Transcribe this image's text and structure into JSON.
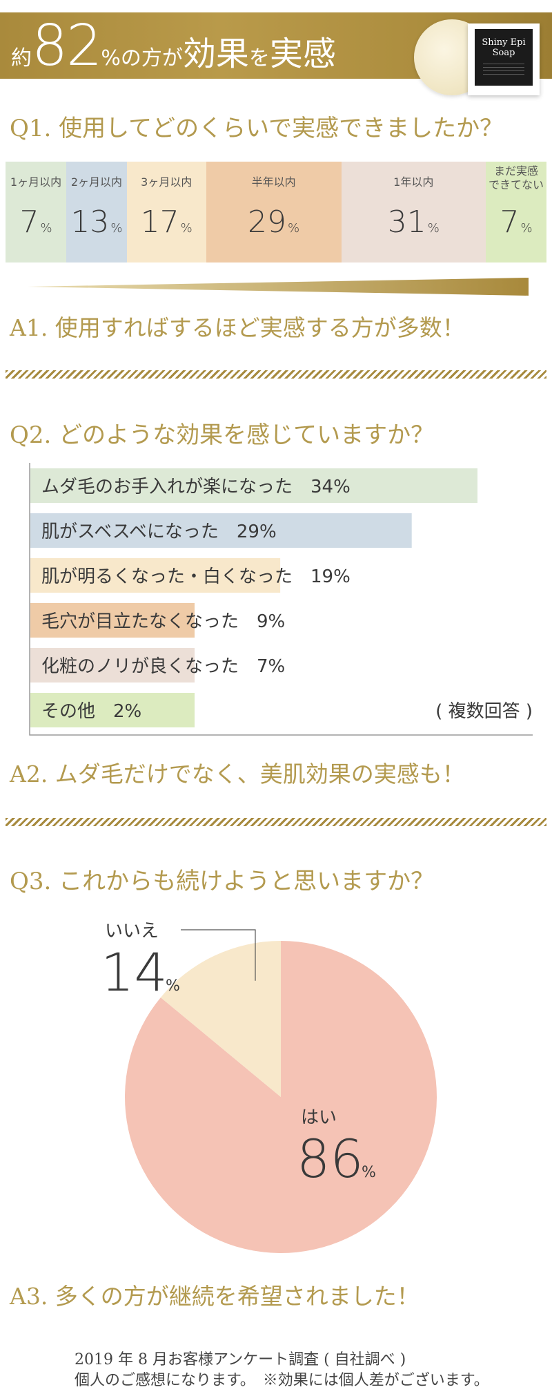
{
  "header": {
    "prefix": "約",
    "number": "82",
    "middle": "%の方が",
    "emph1": "効果",
    "particle": "を",
    "emph2": "実感",
    "product_name_line1": "Shiny Epi",
    "product_name_line2": "Soap",
    "colors": {
      "gold": "#ad8e3f"
    }
  },
  "q1": {
    "question": "Q1. 使用してどのくらいで実感できましたか？",
    "answer": "A1. 使用すればするほど実感する方が多数！",
    "chart_data": {
      "type": "bar",
      "categories": [
        "1ヶ月以内",
        "2ヶ月以内",
        "3ヶ月以内",
        "半年以内",
        "1年以内",
        "まだ実感できてない"
      ],
      "labels": [
        [
          "1ヶ月以内"
        ],
        [
          "2ヶ月以内"
        ],
        [
          "3ヶ月以内"
        ],
        [
          "半年以内"
        ],
        [
          "1年以内"
        ],
        [
          "まだ実感",
          "できてない"
        ]
      ],
      "values": [
        7,
        13,
        17,
        29,
        31,
        7
      ],
      "unit": "%",
      "colors": [
        "#dde9d6",
        "#cfdbe5",
        "#f8e8cb",
        "#efcba7",
        "#ecdfd7",
        "#dcebbf"
      ]
    }
  },
  "q2": {
    "question": "Q2. どのような効果を感じていますか？",
    "answer": "A2. ムダ毛だけでなく、美肌効果の実感も！",
    "note": "( 複数回答 )",
    "chart_data": {
      "type": "bar",
      "orientation": "horizontal",
      "categories": [
        "ムダ毛のお手入れが楽になった",
        "肌がスベスベになった",
        "肌が明るくなった・白くなった",
        "毛穴が目立たなくなった",
        "化粧のノリが良くなった",
        "その他"
      ],
      "values": [
        34,
        29,
        19,
        9,
        7,
        2
      ],
      "unit": "%",
      "colors": [
        "#dde9d6",
        "#cfdbe5",
        "#f8e8cb",
        "#efcba7",
        "#ecdfd7",
        "#dcebbf"
      ]
    }
  },
  "q3": {
    "question": "Q3. これからも続けようと思いますか？",
    "answer": "A3. 多くの方が継続を希望されました！",
    "chart_data": {
      "type": "pie",
      "categories": [
        "はい",
        "いいえ"
      ],
      "values": [
        86,
        14
      ],
      "unit": "%",
      "colors": [
        "#f5c3b5",
        "#f8e8cb"
      ]
    }
  },
  "footer": {
    "line1": "2019 年 8 月お客様アンケート調査 ( 自社調べ )",
    "line2": "個人のご感想になります。　※効果には個人差がございます。"
  }
}
